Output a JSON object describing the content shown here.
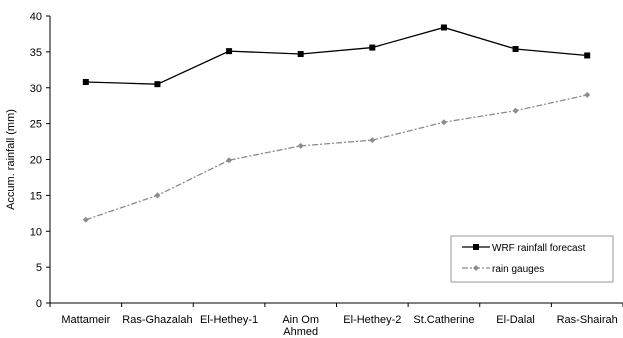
{
  "chart_data": {
    "type": "line",
    "title": "",
    "xlabel": "",
    "ylabel": "Accum. rainfall (mm)",
    "ylim": [
      0,
      40
    ],
    "yticks": [
      0,
      5,
      10,
      15,
      20,
      25,
      30,
      35,
      40
    ],
    "grid": false,
    "legend_position": "bottom-right",
    "categories": [
      [
        "Mattameir"
      ],
      [
        "Ras-Ghazalah"
      ],
      [
        "El-Hethey-1"
      ],
      [
        "Ain Om",
        "Ahmed"
      ],
      [
        "El-Hethey-2"
      ],
      [
        "St.Catherine"
      ],
      [
        "El-Dalal"
      ],
      [
        "Ras-Shairah"
      ]
    ],
    "series": [
      {
        "name": "WRF rainfall forecast",
        "values": [
          30.8,
          30.5,
          35.1,
          34.7,
          35.6,
          38.4,
          35.4,
          34.5
        ],
        "color": "#000000",
        "line_style": "solid",
        "marker": "square"
      },
      {
        "name": "rain gauges",
        "values": [
          11.6,
          15.0,
          19.9,
          21.9,
          22.7,
          25.2,
          26.8,
          29.0
        ],
        "color": "#8c8c8c",
        "line_style": "dash-dot",
        "marker": "diamond"
      }
    ]
  }
}
